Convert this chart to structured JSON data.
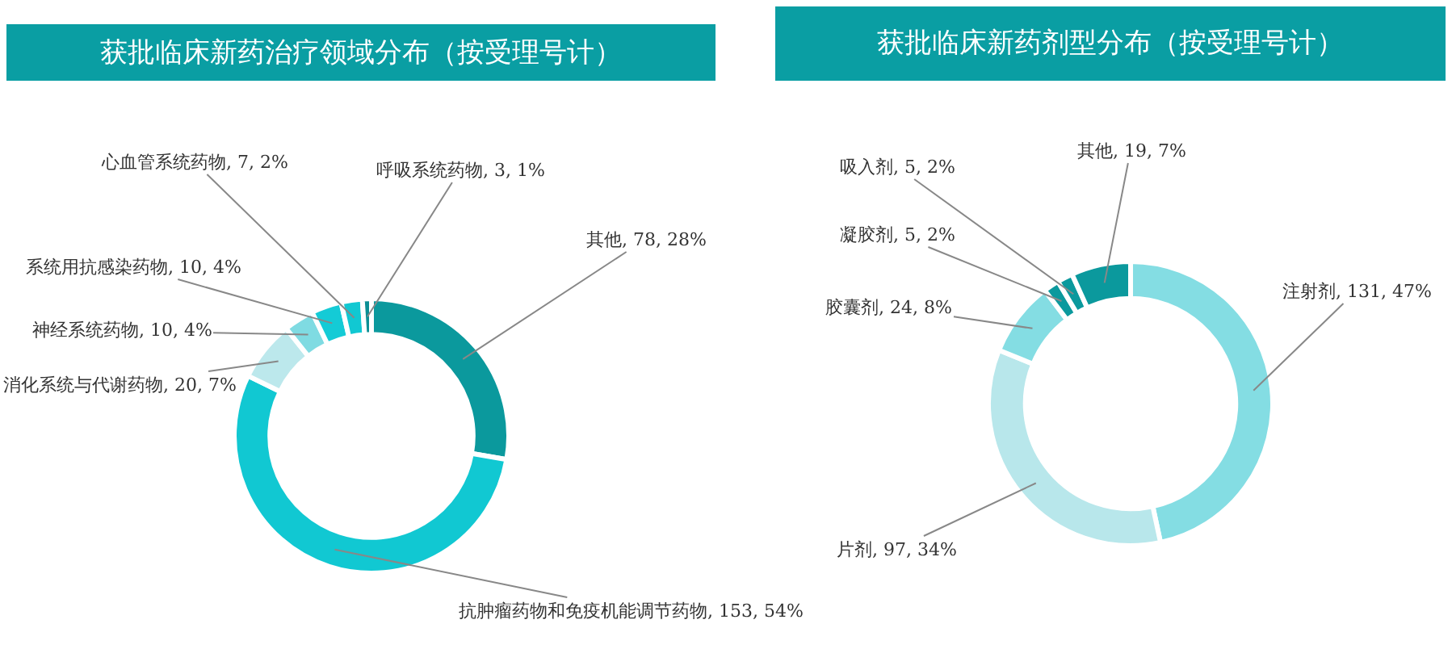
{
  "chart_data": [
    {
      "type": "donut",
      "title": "获批临床新药治疗领域分布（按受理号计）",
      "categories": [
        "其他",
        "抗肿瘤药物和免疫机能调节药物",
        "消化系统与代谢药物",
        "神经系统药物",
        "系统用抗感染药物",
        "心血管系统药物",
        "呼吸系统药物"
      ],
      "values": [
        78,
        153,
        20,
        10,
        10,
        7,
        3
      ],
      "colors": [
        "#0b999d",
        "#11c8d2",
        "#bce8ec",
        "#7fdbe2",
        "#14cbd6",
        "#11c8d2",
        "#0b8f94"
      ],
      "value_labels": [
        "78, 28%",
        "153, 54%",
        "20, 7%",
        "10, 4%",
        "10, 4%",
        "7, 2%",
        "3, 1%"
      ]
    },
    {
      "type": "donut",
      "title": "获批临床新药剂型分布（按受理号计）",
      "categories": [
        "注射剂",
        "片剂",
        "胶囊剂",
        "凝胶剂",
        "吸入剂",
        "其他"
      ],
      "values": [
        131,
        97,
        24,
        5,
        5,
        19
      ],
      "colors": [
        "#84dde3",
        "#b8e7eb",
        "#84dde3",
        "#0b999d",
        "#0b999d",
        "#0b999d"
      ],
      "value_labels": [
        "131, 47%",
        "97, 34%",
        "24, 8%",
        "5, 2%",
        "5, 2%",
        "19, 7%"
      ]
    }
  ]
}
